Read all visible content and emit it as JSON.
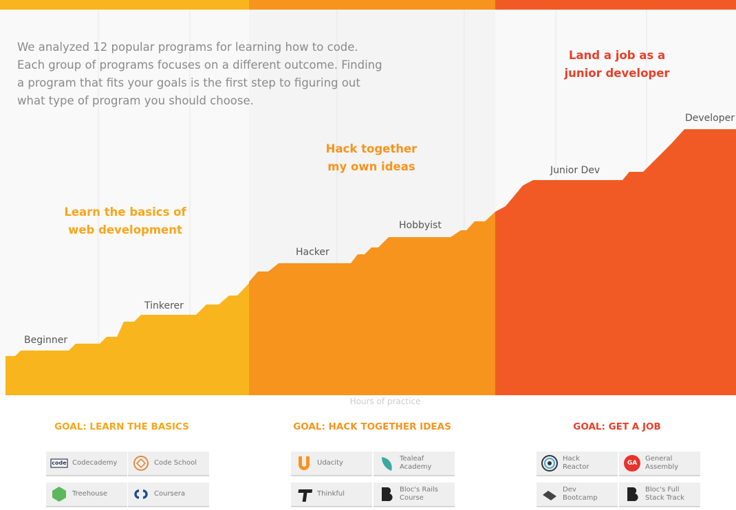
{
  "intro": [
    "We analyzed 12 popular programs for learning how to code.",
    "Each group of programs focuses on a different outcome. Finding",
    "a program that fits your goals is the first step to figuring out",
    "what type of program you should choose."
  ],
  "sections": [
    {
      "heading": [
        "Learn the basics of",
        "web development"
      ],
      "levels": [
        "Beginner",
        "Tinkerer"
      ]
    },
    {
      "heading": [
        "Hack together",
        "my own ideas"
      ],
      "levels": [
        "Hacker",
        "Hobbyist"
      ]
    },
    {
      "heading": [
        "Land a job as a",
        "junior developer"
      ],
      "levels": [
        "Junior Dev",
        "Developer"
      ]
    }
  ],
  "axis_label": "Hours of practice",
  "goals": [
    {
      "title": "GOAL: LEARN THE BASICS",
      "programs": [
        {
          "logo": "code",
          "lines": [
            "Codecademy"
          ]
        },
        {
          "lines": [
            "Code School"
          ]
        },
        {
          "lines": [
            "Treehouse"
          ]
        },
        {
          "lines": [
            "Coursera"
          ]
        }
      ]
    },
    {
      "title": "GOAL: HACK TOGETHER IDEAS",
      "programs": [
        {
          "lines": [
            "Udacity"
          ]
        },
        {
          "lines": [
            "Tealeaf",
            "Academy"
          ]
        },
        {
          "lines": [
            "Thinkful"
          ]
        },
        {
          "lines": [
            "Bloc's Rails",
            "Course"
          ]
        }
      ]
    },
    {
      "title": "GOAL: GET A JOB",
      "programs": [
        {
          "lines": [
            "Hack",
            "Reactor"
          ]
        },
        {
          "logo": "GA",
          "lines": [
            "General",
            "Assembly"
          ]
        },
        {
          "lines": [
            "Dev",
            "Bootcamp"
          ]
        },
        {
          "lines": [
            "Bloc's Full",
            "Stack Track"
          ]
        }
      ]
    }
  ]
}
